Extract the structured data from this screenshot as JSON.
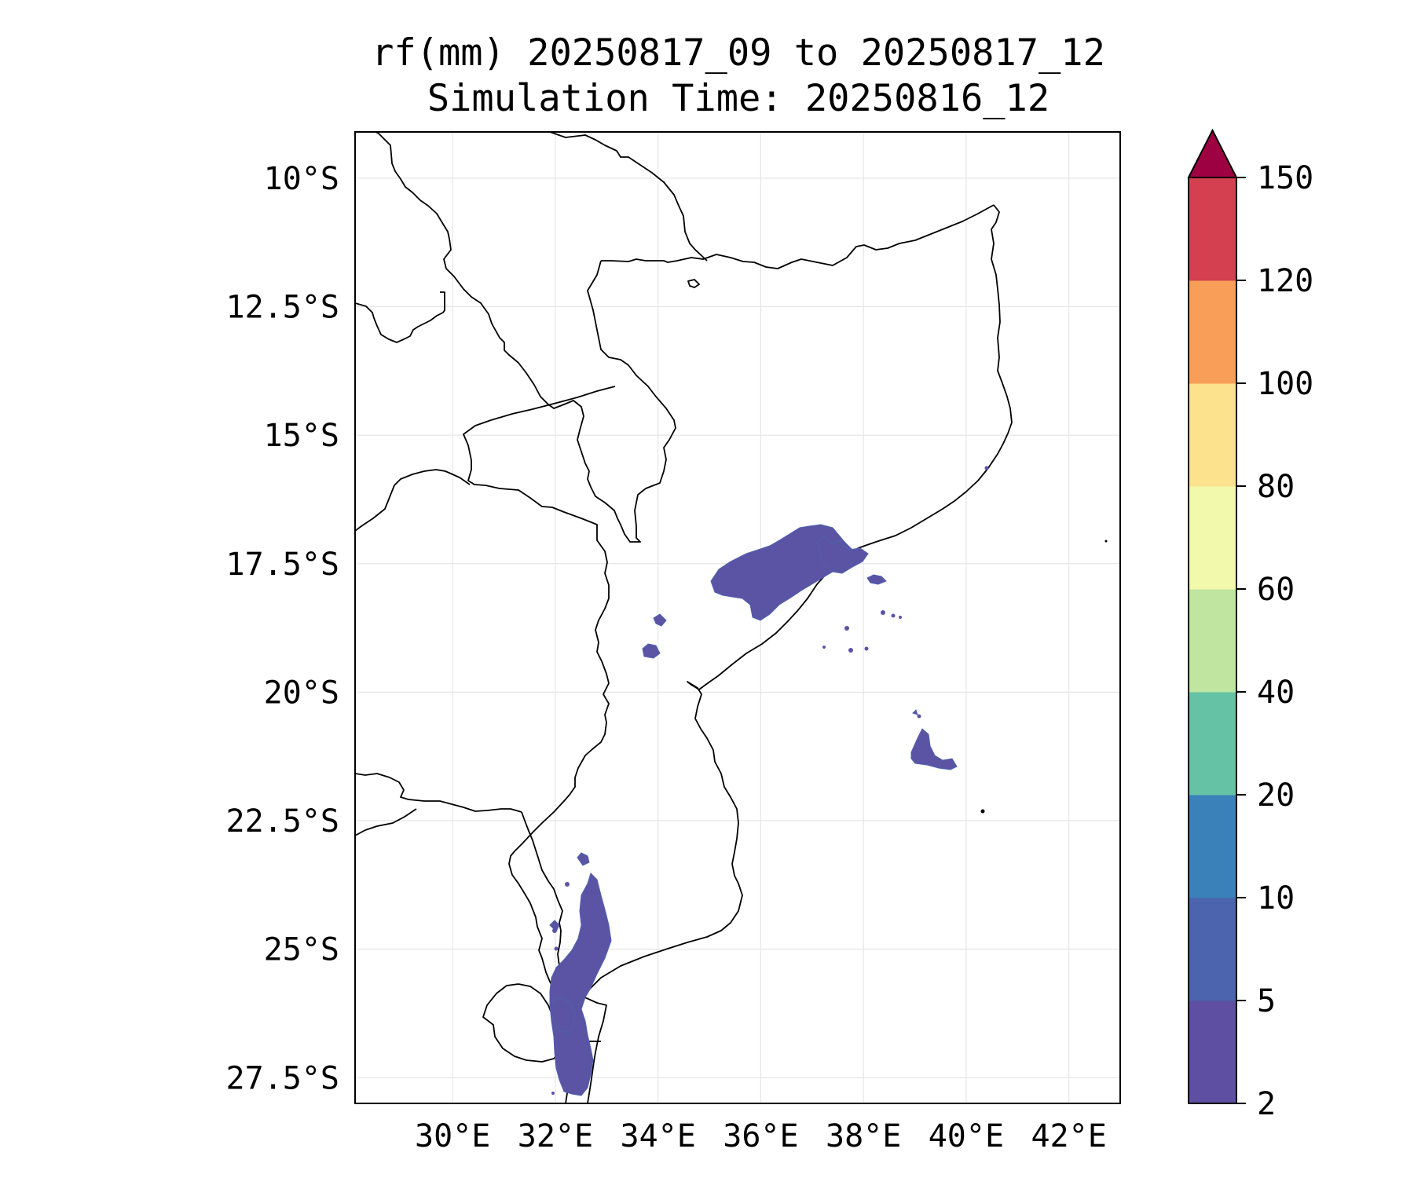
{
  "title": {
    "line1": "rf(mm) 20250817_09 to 20250817_12",
    "line2": "Simulation Time: 20250816_12"
  },
  "map": {
    "lat_ticks": [
      "10°S",
      "12.5°S",
      "15°S",
      "17.5°S",
      "20°S",
      "22.5°S",
      "25°S",
      "27.5°S"
    ],
    "lon_ticks": [
      "30°E",
      "32°E",
      "34°E",
      "36°E",
      "38°E",
      "40°E",
      "42°E"
    ],
    "lat_values": [
      -10,
      -12.5,
      -15,
      -17.5,
      -20,
      -22.5,
      -25,
      -27.5
    ],
    "lon_values": [
      30,
      32,
      34,
      36,
      38,
      40,
      42
    ],
    "lon_range": [
      28.1,
      43.0
    ],
    "lat_range": [
      -9.1,
      -28.0
    ],
    "grid": true,
    "rain_color": "#5b53a4",
    "rain_color_alt": "#4e62ad",
    "border_color": "#000000"
  },
  "colorbar": {
    "levels": [
      "2",
      "5",
      "10",
      "20",
      "40",
      "60",
      "80",
      "100",
      "120",
      "150"
    ],
    "colors": [
      "#5e4fa2",
      "#4b64ad",
      "#3a80b9",
      "#66c2a5",
      "#bfe5a0",
      "#f2f9ac",
      "#fce28d",
      "#f99e58",
      "#d4404f"
    ],
    "extend_color": "#9e0142",
    "extend": "max"
  }
}
